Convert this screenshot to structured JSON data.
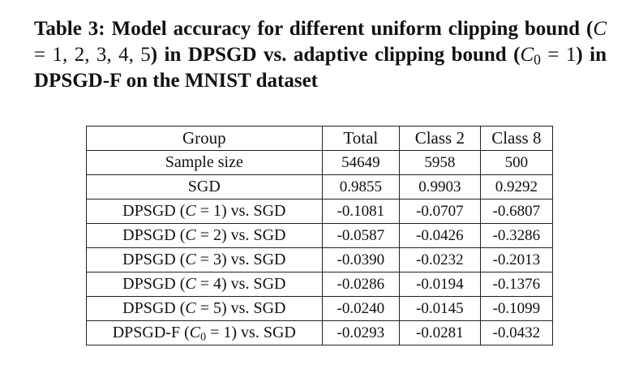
{
  "caption": {
    "label": "Table 3:",
    "text_1": "Model accuracy for different uniform clipping bound (",
    "c_var": "C",
    "eq_1": " = 1, 2, 3, 4, 5",
    "text_2": ") in DPSGD vs. adaptive clipping bound (",
    "c0_var": "C",
    "c0_sub": "0",
    "eq_2": " = 1",
    "text_3": ") in DPSGD-F on the MNIST dataset"
  },
  "table": {
    "headers": [
      "Group",
      "Total",
      "Class 2",
      "Class 8"
    ],
    "rows": [
      {
        "pre": "Sample size",
        "var": "",
        "sub": "",
        "post": "",
        "values": [
          "54649",
          "5958",
          "500"
        ]
      },
      {
        "pre": "SGD",
        "var": "",
        "sub": "",
        "post": "",
        "values": [
          "0.9855",
          "0.9903",
          "0.9292"
        ]
      },
      {
        "pre": "DPSGD (",
        "var": "C",
        "sub": "",
        "post": " = 1) vs. SGD",
        "values": [
          "-0.1081",
          "-0.0707",
          "-0.6807"
        ]
      },
      {
        "pre": "DPSGD (",
        "var": "C",
        "sub": "",
        "post": " = 2) vs. SGD",
        "values": [
          "-0.0587",
          "-0.0426",
          "-0.3286"
        ]
      },
      {
        "pre": "DPSGD (",
        "var": "C",
        "sub": "",
        "post": " = 3) vs. SGD",
        "values": [
          "-0.0390",
          "-0.0232",
          "-0.2013"
        ]
      },
      {
        "pre": "DPSGD (",
        "var": "C",
        "sub": "",
        "post": " = 4) vs. SGD",
        "values": [
          "-0.0286",
          "-0.0194",
          "-0.1376"
        ]
      },
      {
        "pre": "DPSGD (",
        "var": "C",
        "sub": "",
        "post": " = 5) vs. SGD",
        "values": [
          "-0.0240",
          "-0.0145",
          "-0.1099"
        ]
      },
      {
        "pre": "DPSGD-F (",
        "var": "C",
        "sub": "0",
        "post": " = 1) vs. SGD",
        "values": [
          "-0.0293",
          "-0.0281",
          "-0.0432"
        ]
      }
    ]
  }
}
